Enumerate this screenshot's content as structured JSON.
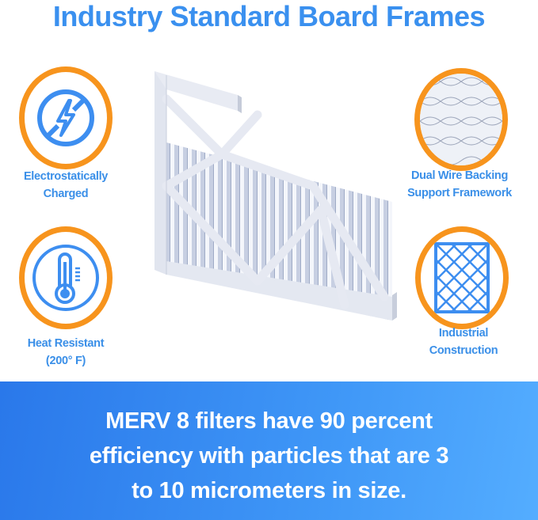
{
  "title": "Industry Standard Board Frames",
  "features": [
    {
      "icon": "lightning-bolt-icon",
      "label_line1": "Electrostatically",
      "label_line2": "Charged"
    },
    {
      "icon": "thermometer-icon",
      "label_line1": "Heat Resistant",
      "label_line2": "(200° F)"
    },
    {
      "icon": "wire-mesh-closeup-icon",
      "label_line1": "Dual Wire Backing",
      "label_line2": "Support Framework"
    },
    {
      "icon": "grid-frame-icon",
      "label_line1": "Industrial",
      "label_line2": "Construction"
    }
  ],
  "banner": {
    "line1": "MERV 8 filters have 90 percent",
    "line2": "efficiency with particles that are 3",
    "line3": "to 10 micrometers in size."
  },
  "colors": {
    "accent_blue": "#3a90ef",
    "ring_orange": "#f7941d",
    "banner_blue": "#2a78ea"
  }
}
